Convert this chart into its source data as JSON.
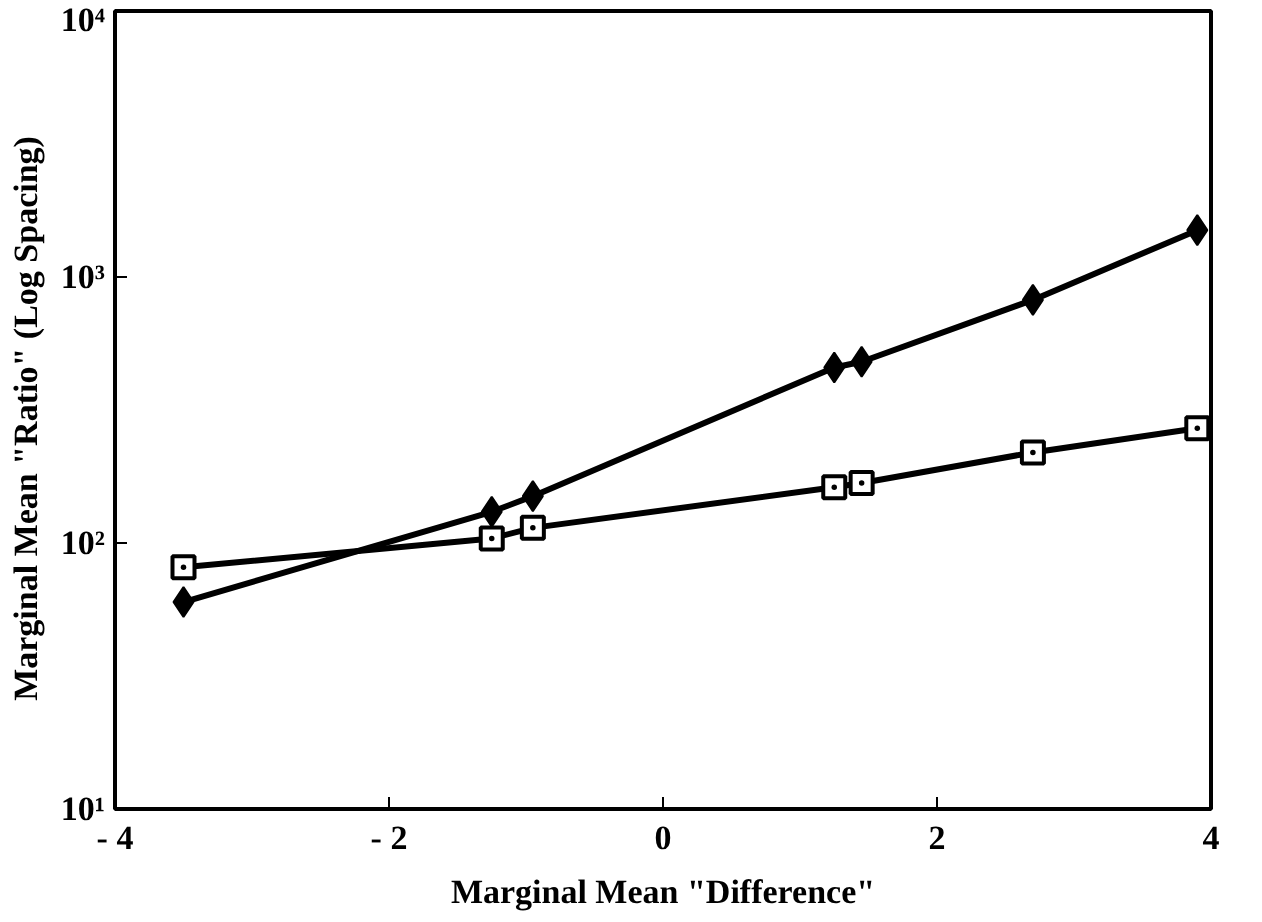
{
  "chart_data": {
    "type": "line",
    "xlabel": "Marginal Mean \"Difference\"",
    "ylabel": "Marginal Mean  \"Ratio\"  (Log Spacing)",
    "log": "y",
    "grid": false,
    "xlim": [
      -4,
      4
    ],
    "ylim": [
      10,
      10000
    ],
    "xticks": [
      {
        "value": -4,
        "label": "- 4"
      },
      {
        "value": -2,
        "label": "- 2"
      },
      0,
      2,
      4
    ],
    "yticks": [
      {
        "value": 10,
        "label": "10¹"
      },
      {
        "value": 100,
        "label": "10²"
      },
      {
        "value": 1000,
        "label": "10³"
      },
      {
        "value": 10000,
        "label": "10⁴"
      }
    ],
    "series": [
      {
        "color": "#000000",
        "marker": "diamond",
        "x": [
          -3.5,
          -1.25,
          -0.95,
          1.25,
          1.45,
          2.7,
          3.9
        ],
        "values": [
          60,
          131,
          150,
          457,
          480,
          820,
          1500
        ]
      },
      {
        "color": "#000000",
        "marker": "square",
        "x": [
          -3.5,
          -1.25,
          -0.95,
          1.25,
          1.45,
          2.7,
          3.9
        ],
        "values": [
          81,
          104,
          114,
          162,
          168,
          219,
          270
        ]
      }
    ]
  }
}
